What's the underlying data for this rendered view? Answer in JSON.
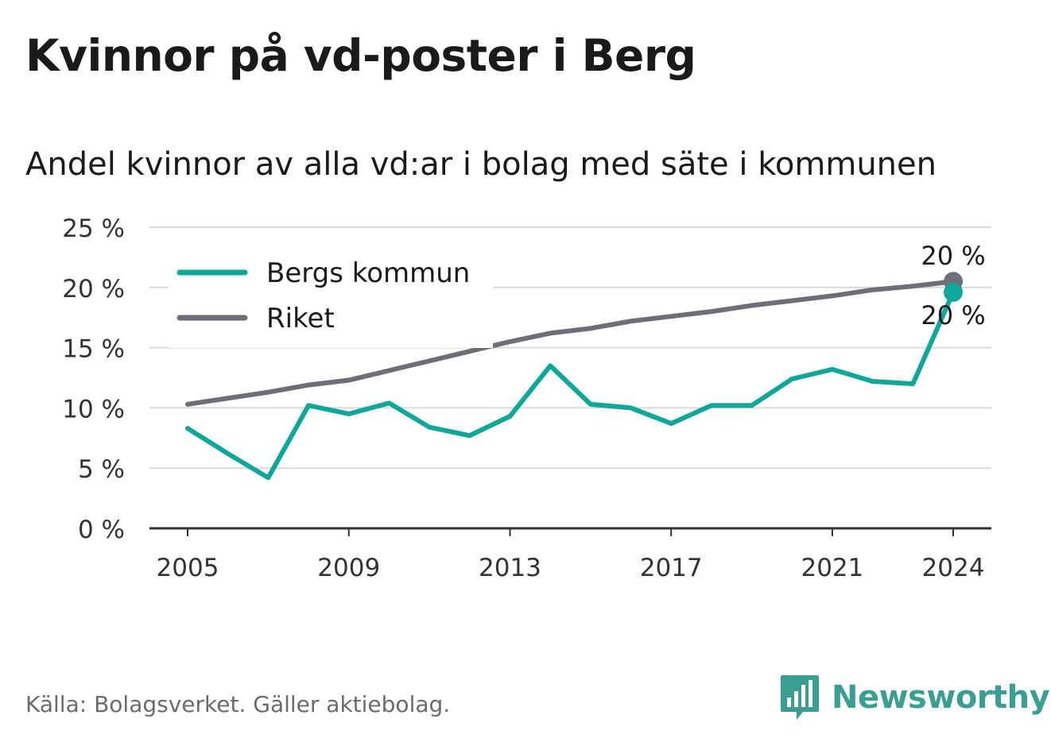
{
  "header": {
    "title": "Kvinnor på vd-poster i Berg",
    "subtitle": "Andel kvinnor av alla vd:ar i bolag med säte i kommunen"
  },
  "footer": {
    "source": "Källa: Bolagsverket. Gäller aktiebolag.",
    "brand": "Newsworthy"
  },
  "colors": {
    "bergs": "#0ea79a",
    "riket": "#6e6e76",
    "grid": "#d9d9d9",
    "axis": "#333333",
    "brand": "#3a9e93"
  },
  "chart_data": {
    "type": "line",
    "title": "Kvinnor på vd-poster i Berg",
    "subtitle": "Andel kvinnor av alla vd:ar i bolag med säte i kommunen",
    "xlabel": "",
    "ylabel": "",
    "x": [
      2005,
      2006,
      2007,
      2008,
      2009,
      2010,
      2011,
      2012,
      2013,
      2014,
      2015,
      2016,
      2017,
      2018,
      2019,
      2020,
      2021,
      2022,
      2023,
      2024
    ],
    "x_ticks": [
      2005,
      2009,
      2013,
      2017,
      2021,
      2024
    ],
    "ylim": [
      0,
      25
    ],
    "y_ticks": [
      0,
      5,
      10,
      15,
      20,
      25
    ],
    "y_tick_labels": [
      "0 %",
      "5 %",
      "10 %",
      "15 %",
      "20 %",
      "25 %"
    ],
    "grid": true,
    "legend_position": "top-left",
    "series": [
      {
        "name": "Bergs kommun",
        "color": "#0ea79a",
        "values": [
          8.3,
          6.2,
          4.2,
          10.2,
          9.5,
          10.4,
          8.4,
          7.7,
          9.3,
          13.5,
          10.3,
          10.0,
          8.7,
          10.2,
          10.2,
          12.4,
          13.2,
          12.2,
          12.0,
          19.6
        ],
        "end_label": "20 %"
      },
      {
        "name": "Riket",
        "color": "#6e6e76",
        "values": [
          10.3,
          10.8,
          11.3,
          11.9,
          12.3,
          13.1,
          13.9,
          14.7,
          15.5,
          16.2,
          16.6,
          17.2,
          17.6,
          18.0,
          18.5,
          18.9,
          19.3,
          19.8,
          20.1,
          20.5
        ],
        "end_label": "20 %"
      }
    ]
  }
}
